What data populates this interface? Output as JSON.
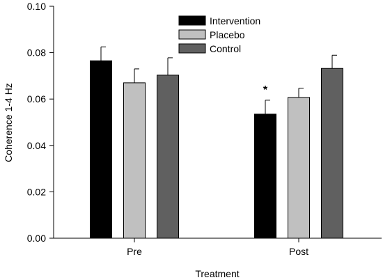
{
  "chart_data": {
    "type": "bar",
    "title": "",
    "xlabel": "Treatment",
    "ylabel": "Coherence 1-4 Hz",
    "ylim": [
      0,
      0.1
    ],
    "yticks": [
      "0.00",
      "0.02",
      "0.04",
      "0.06",
      "0.08",
      "0.10"
    ],
    "categories": [
      "Pre",
      "Post"
    ],
    "series": [
      {
        "name": "Intervention",
        "color": "#000000",
        "values": [
          0.0765,
          0.0535
        ],
        "errors": [
          0.006,
          0.006
        ]
      },
      {
        "name": "Placebo",
        "color": "#c0c0c0",
        "values": [
          0.067,
          0.0607
        ],
        "errors": [
          0.006,
          0.004
        ]
      },
      {
        "name": "Control",
        "color": "#606060",
        "values": [
          0.0703,
          0.0732
        ],
        "errors": [
          0.0075,
          0.0057
        ]
      }
    ],
    "legend": "top-center",
    "grid": false,
    "annotations": [
      {
        "text": "*",
        "category": "Post",
        "series": "Intervention"
      }
    ]
  }
}
